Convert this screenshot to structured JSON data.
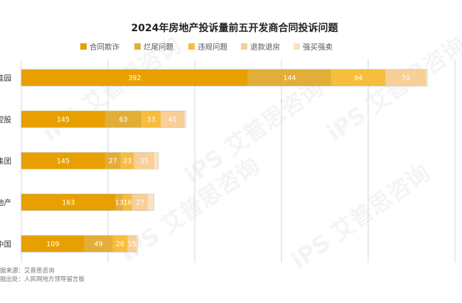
{
  "chart_data": {
    "type": "bar",
    "orientation": "horizontal",
    "stacked": true,
    "title": "2024年房地产投诉量前五开发商合同投诉问题",
    "categories": [
      "桂园",
      "控股",
      "集团",
      "地产",
      "中国"
    ],
    "series": [
      {
        "name": "合同欺诈",
        "color": "#E8A000",
        "values": [
          392,
          145,
          145,
          163,
          109
        ],
        "labels": [
          "392",
          "145",
          "145",
          "163",
          "109"
        ]
      },
      {
        "name": "烂尾问题",
        "color": "#E3AE37",
        "values": [
          144,
          63,
          27,
          13,
          49
        ],
        "labels": [
          "144",
          "63",
          "27",
          "13",
          "49"
        ]
      },
      {
        "name": "违规问题",
        "color": "#F7BD3C",
        "values": [
          94,
          33,
          23,
          16,
          26
        ],
        "labels": [
          "94",
          "33",
          "23",
          "16",
          "26"
        ]
      },
      {
        "name": "退款退房",
        "color": "#F8CF96",
        "values": [
          70,
          41,
          35,
          27,
          15
        ],
        "labels": [
          "70",
          "41",
          "35",
          "27",
          "15"
        ]
      },
      {
        "name": "强买强卖",
        "color": "#FBE3C2",
        "values": [
          2,
          2,
          7,
          10,
          2
        ],
        "labels": [
          "",
          "",
          "",
          "",
          ""
        ]
      }
    ],
    "xlim": [
      0,
      750
    ],
    "grid": true,
    "legend_position": "top",
    "footer": [
      "据来源：艾普思咨询",
      "据出处：人民网地方领导留言板"
    ],
    "watermark": "iPS 艾普思咨询"
  }
}
